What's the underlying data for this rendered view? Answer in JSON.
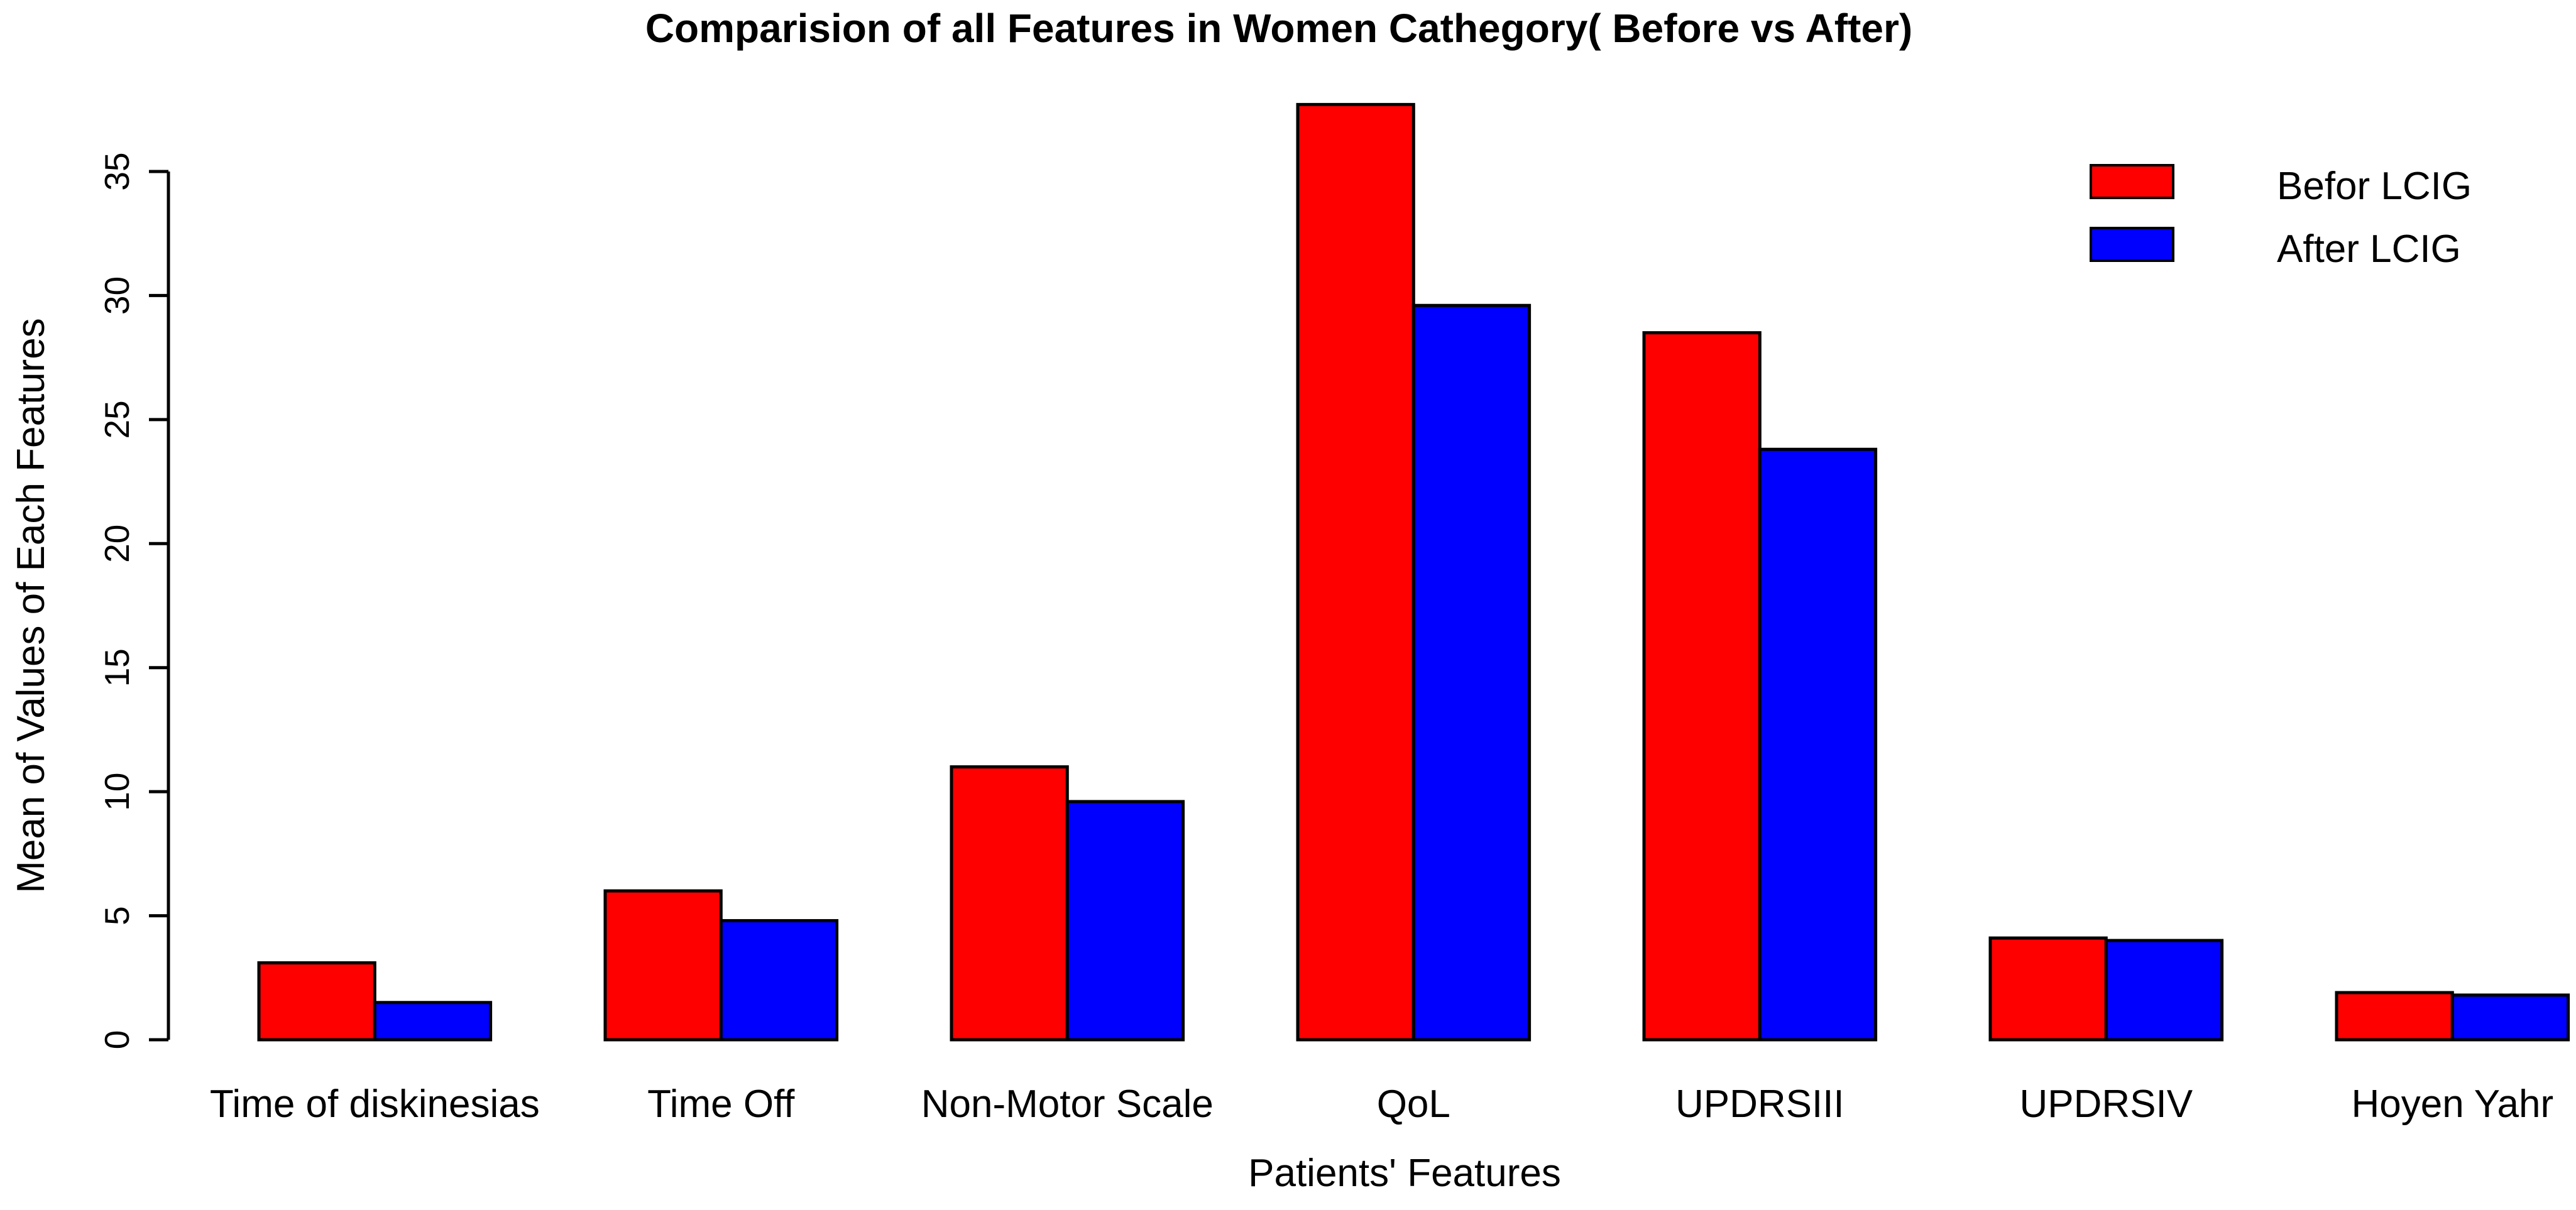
{
  "chart_data": {
    "type": "bar",
    "title": "Comparision of all Features in Women Cathegory( Before vs After)",
    "xlabel": "Patients' Features",
    "ylabel": "Mean of Values of Each Features",
    "categories": [
      "Time of diskinesias",
      "Time Off",
      "Non-Motor Scale",
      "QoL",
      "UPDRSIII",
      "UPDRSIV",
      "Hoyen Yahr"
    ],
    "series": [
      {
        "name": "Befor LCIG",
        "color": "#FF0000",
        "values": [
          3.1,
          6.0,
          11.0,
          37.7,
          28.5,
          4.1,
          1.9
        ]
      },
      {
        "name": "After LCIG",
        "color": "#0000FF",
        "values": [
          1.5,
          4.8,
          9.6,
          29.6,
          23.8,
          4.0,
          1.8
        ]
      }
    ],
    "yticks": [
      0,
      5,
      10,
      15,
      20,
      25,
      30,
      35
    ],
    "ylim": [
      0,
      38
    ],
    "grid": false,
    "legend_position": "top-right",
    "bar_edge_color": "#000000",
    "axis_color": "#000000",
    "background": "#FFFFFF"
  }
}
